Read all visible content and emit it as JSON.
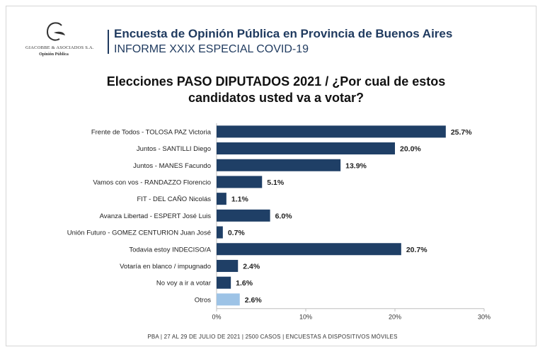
{
  "header": {
    "brand_name": "GIACOBBE & ASOCIADOS S.A.",
    "brand_sub": "Opinión Pública",
    "survey_title": "Encuesta de Opinión Pública en Provincia de Buenos Aires",
    "report_title": "INFORME XXIX ESPECIAL COVID-19"
  },
  "chart_title": "Elecciones PASO DIPUTADOS 2021 / ¿Por cual de estos candidatos usted va a votar?",
  "footer": "PBA | 27 AL 29 DE JULIO DE 2021 | 2500 CASOS | ENCUESTAS A DISPOSITIVOS MÓVILES",
  "colors": {
    "bar": "#1f3f66",
    "bar_highlight": "#9dc3e6",
    "title": "#1f3a5f"
  },
  "chart_data": {
    "type": "bar",
    "orientation": "horizontal",
    "categories": [
      "Frente de Todos - TOLOSA PAZ Victoria",
      "Juntos - SANTILLI Diego",
      "Juntos - MANES Facundo",
      "Vamos con vos - RANDAZZO Florencio",
      "FIT - DEL CAÑO Nicolás",
      "Avanza Libertad - ESPERT José Luis",
      "Unión Futuro - GOMEZ CENTURION Juan José",
      "Todavia estoy INDECISO/A",
      "Votaría en blanco / impugnado",
      "No voy a ir a votar",
      "Otros"
    ],
    "values": [
      25.7,
      20.0,
      13.9,
      5.1,
      1.1,
      6.0,
      0.7,
      20.7,
      2.4,
      1.6,
      2.6
    ],
    "data_labels": [
      "25.7%",
      "20.0%",
      "13.9%",
      "5.1%",
      "1.1%",
      "6.0%",
      "0.7%",
      "20.7%",
      "2.4%",
      "1.6%",
      "2.6%"
    ],
    "highlight_index": 10,
    "xlim": [
      0,
      30
    ],
    "xticks": [
      0,
      10,
      20,
      30
    ],
    "xtick_labels": [
      "0%",
      "10%",
      "20%",
      "30%"
    ],
    "grid": false,
    "legend": "none"
  }
}
